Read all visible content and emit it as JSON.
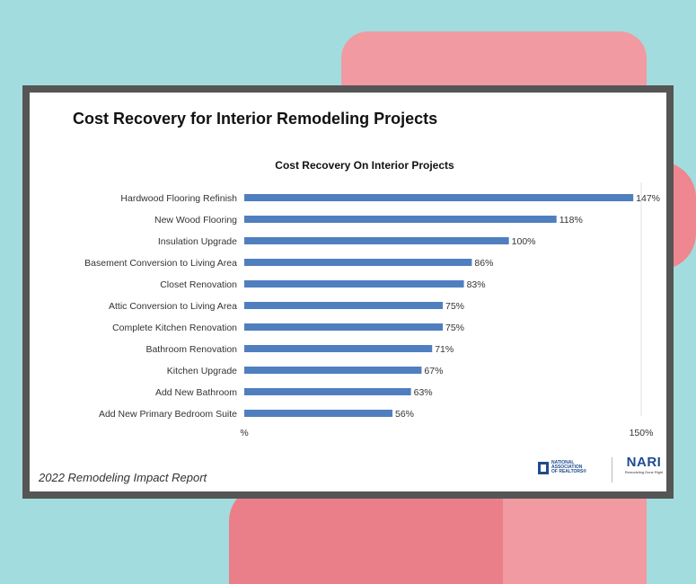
{
  "report": {
    "title": "Cost Recovery for Interior Remodeling Projects",
    "footer": "2022 Remodeling Impact Report"
  },
  "logos": {
    "nar_text": "NATIONAL ASSOCIATION OF REALTORS®",
    "nari_text": "NARI",
    "nari_subtext": "Remodeling Done Right"
  },
  "colors": {
    "bar": "#4f7fbf",
    "frame": "#555555",
    "background": "#a3dcde"
  },
  "chart_data": {
    "type": "bar",
    "orientation": "horizontal",
    "title": "Cost Recovery On Interior Projects",
    "categories": [
      "Hardwood Flooring Refinish",
      "New Wood Flooring",
      "Insulation Upgrade",
      "Basement Conversion to Living Area",
      "Closet Renovation",
      "Attic Conversion to Living Area",
      "Complete Kitchen Renovation",
      "Bathroom Renovation",
      "Kitchen Upgrade",
      "Add New Bathroom",
      "Add New Primary Bedroom Suite"
    ],
    "values": [
      147,
      118,
      100,
      86,
      83,
      75,
      75,
      71,
      67,
      63,
      56
    ],
    "value_labels": [
      "147%",
      "118%",
      "100%",
      "86%",
      "83%",
      "75%",
      "75%",
      "71%",
      "67%",
      "63%",
      "56%"
    ],
    "xlim": [
      0,
      150
    ],
    "x_tick_labels": [
      "%",
      "150%"
    ],
    "grid": false,
    "legend": "none"
  }
}
